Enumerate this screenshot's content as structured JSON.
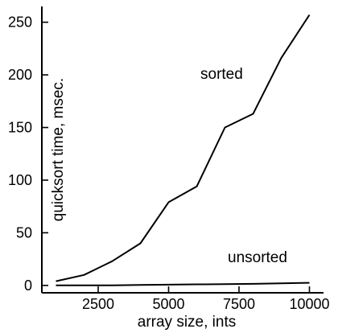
{
  "chart_data": {
    "type": "line",
    "title": "",
    "xlabel": "array size, ints",
    "ylabel": "quicksort time, msec.",
    "xlim": [
      500,
      10500
    ],
    "ylim": [
      -7,
      265
    ],
    "x_ticks": [
      2500,
      5000,
      7500,
      10000
    ],
    "y_ticks": [
      0,
      50,
      100,
      150,
      200,
      250
    ],
    "x_tick_labels": [
      "2500",
      "5000",
      "7500",
      "10000"
    ],
    "y_tick_labels": [
      "0",
      "50",
      "100",
      "150",
      "200",
      "250"
    ],
    "grid": false,
    "legend": "inline labels",
    "series": [
      {
        "name": "sorted",
        "x": [
          1000,
          2000,
          3000,
          4000,
          5000,
          6000,
          7000,
          8000,
          9000,
          10000
        ],
        "values": [
          4,
          10,
          23,
          40,
          79,
          94,
          150,
          163,
          216,
          257
        ]
      },
      {
        "name": "unsorted",
        "x": [
          1000,
          2000,
          3000,
          4000,
          5000,
          6000,
          7000,
          8000,
          9000,
          10000
        ],
        "values": [
          0,
          0,
          0,
          0.5,
          0.7,
          1,
          1.2,
          1.5,
          2,
          2.5
        ]
      }
    ]
  }
}
